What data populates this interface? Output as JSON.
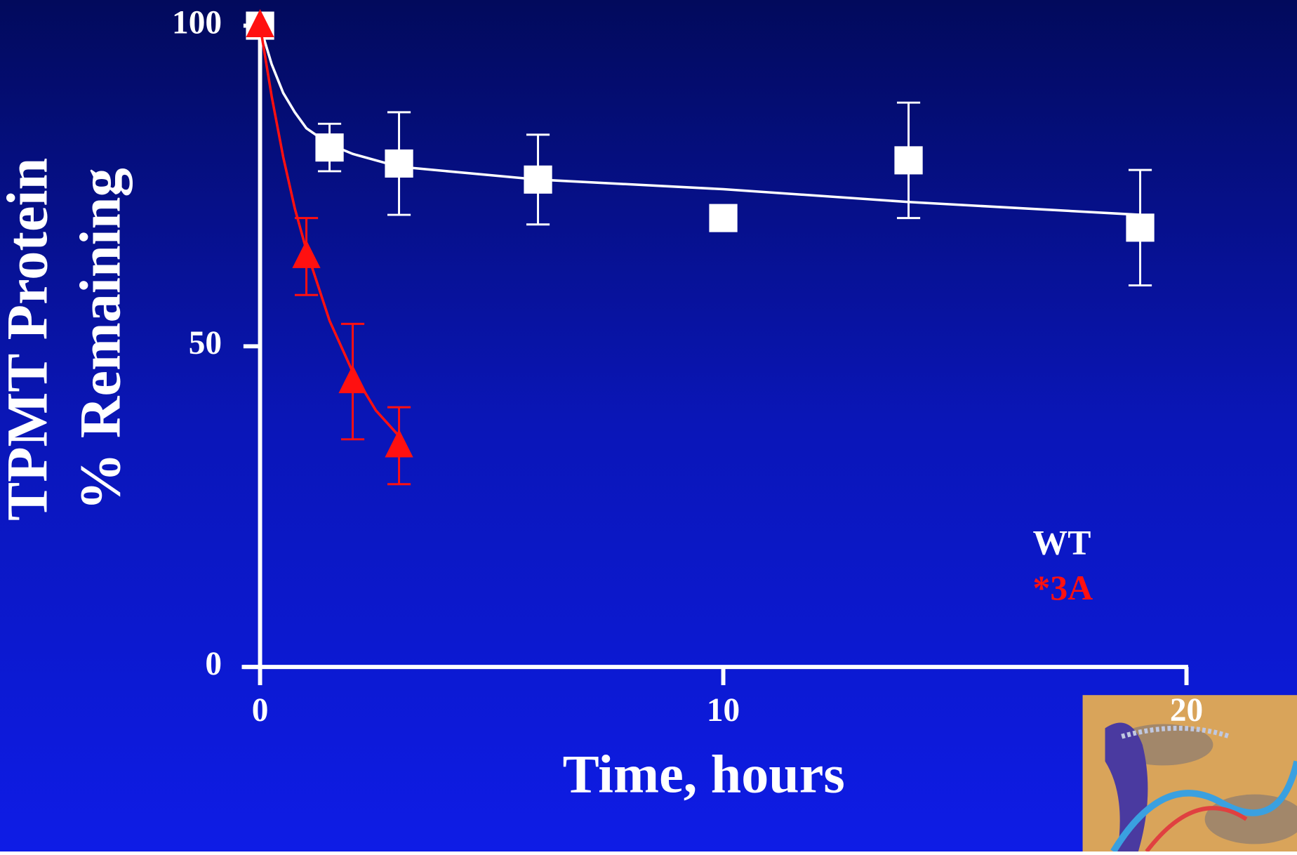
{
  "chart_data": {
    "type": "scatter",
    "xlabel": "Time, hours",
    "ylabel": [
      "TPMT Protein",
      "% Remaining"
    ],
    "xlim": [
      0,
      20
    ],
    "xticks": [
      0,
      10,
      20
    ],
    "ylim": [
      0,
      100
    ],
    "yticks": [
      0,
      50,
      100
    ],
    "series": [
      {
        "name": "WT",
        "color": "#ffffff",
        "marker": "square",
        "x": [
          0,
          1.5,
          3,
          6,
          10,
          14,
          19
        ],
        "values": [
          100,
          81,
          78.5,
          76,
          70,
          79,
          68.5
        ],
        "errors": [
          null,
          3.7,
          8,
          7,
          null,
          9,
          9
        ],
        "fit_x": [
          0,
          0.25,
          0.5,
          0.75,
          1,
          1.5,
          2,
          3,
          6,
          10,
          14,
          19
        ],
        "fit_values": [
          100,
          94,
          89.5,
          86.5,
          84,
          81.5,
          80,
          78,
          76,
          74.5,
          72.5,
          70.5
        ]
      },
      {
        "name": "*3A",
        "color": "#ff1010",
        "marker": "triangle",
        "x": [
          0,
          1,
          2,
          3
        ],
        "values": [
          100,
          64,
          44.5,
          34.5
        ],
        "errors": [
          null,
          6,
          9,
          6
        ],
        "fit_x": [
          0,
          0.25,
          0.5,
          0.75,
          1,
          1.5,
          2,
          2.5,
          3
        ],
        "fit_values": [
          100,
          89,
          79.5,
          71.5,
          65,
          54,
          46,
          40,
          36
        ]
      }
    ]
  }
}
